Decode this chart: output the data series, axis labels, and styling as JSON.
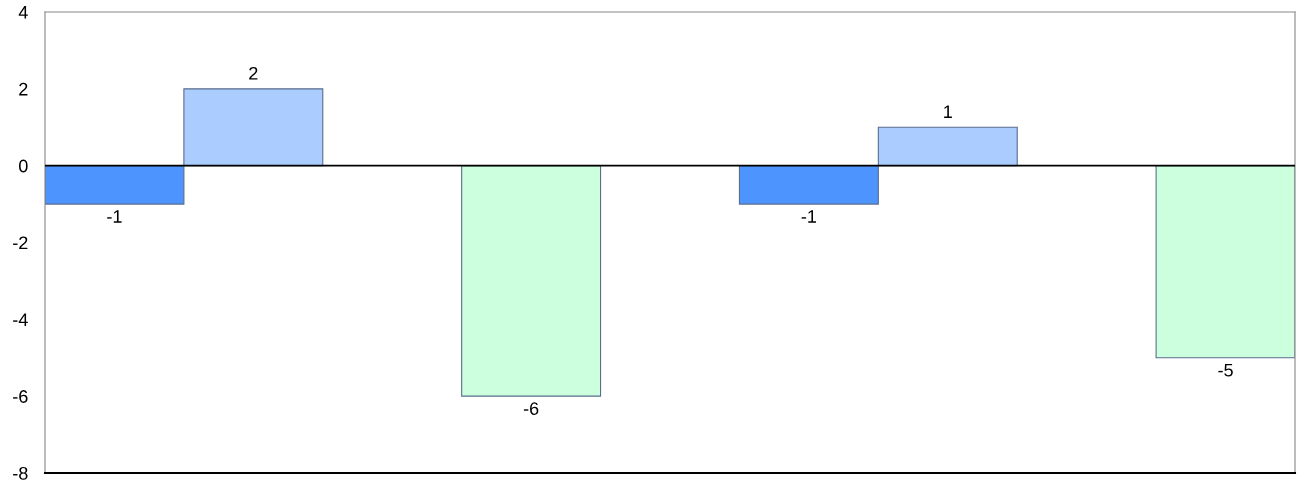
{
  "chart_data": {
    "type": "bar",
    "categories": [
      null,
      null,
      null,
      null,
      null,
      null,
      null,
      null,
      null
    ],
    "values": [
      -1,
      2,
      null,
      -6,
      null,
      -1,
      1,
      null,
      -5
    ],
    "colors": [
      "#4d94ff",
      "#aaccff",
      "#ffffff",
      "#ccffdd",
      "#ffffff",
      "#4d94ff",
      "#aaccff",
      "#ffffff",
      "#ccffdd"
    ],
    "ylim": [
      -8,
      4
    ],
    "yticks": [
      -8,
      -6,
      -4,
      -2,
      0,
      2,
      4
    ],
    "ref_lines": [
      {
        "axis": "y",
        "value": 0,
        "color": "#000000"
      }
    ],
    "data_labels": true,
    "grid": false,
    "legend": false
  }
}
